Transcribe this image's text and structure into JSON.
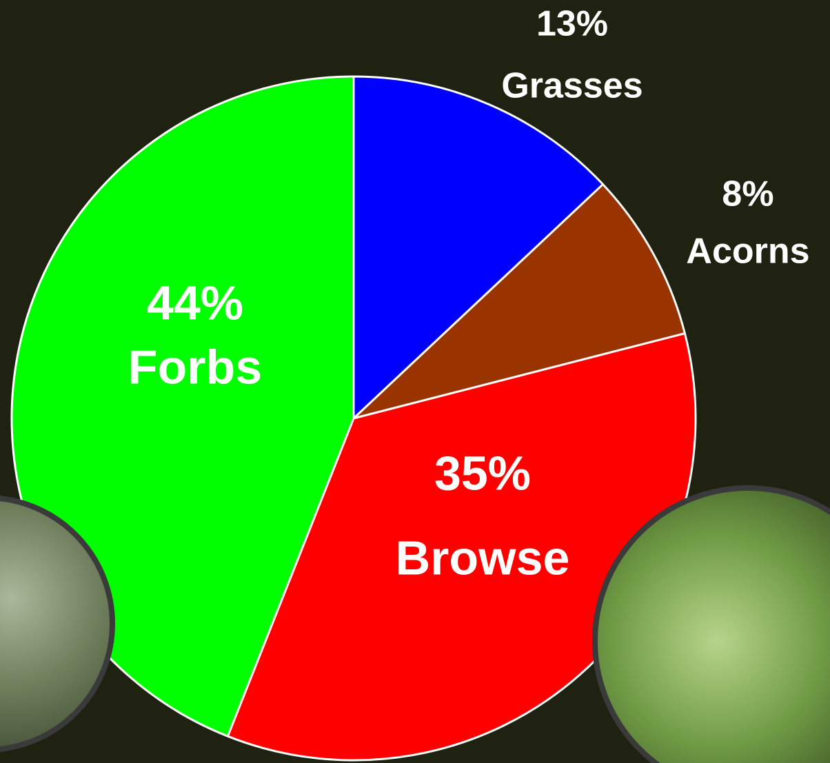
{
  "chart_data": {
    "type": "pie",
    "categories": [
      "Grasses",
      "Acorns",
      "Browse",
      "Forbs"
    ],
    "values": [
      13,
      8,
      35,
      44
    ],
    "value_labels": [
      "13%",
      "8%",
      "35%",
      "44%"
    ],
    "colors": [
      "#0000ff",
      "#993300",
      "#ff0000",
      "#00ff00"
    ]
  }
}
